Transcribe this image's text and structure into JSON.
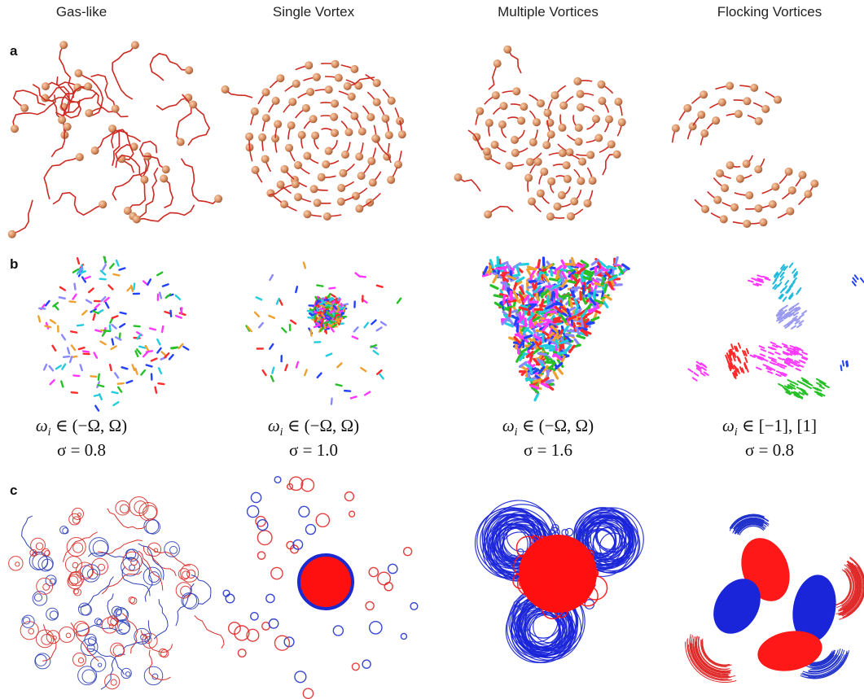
{
  "columns": [
    "Gas-like",
    "Single Vortex",
    "Multiple Vortices",
    "Flocking Vortices"
  ],
  "panels": [
    "a",
    "b",
    "c"
  ],
  "equations": [
    {
      "symbol": "ω",
      "subscript": "i",
      "rest": " ∈ (−Ω, Ω)",
      "sigma": "σ = 0.8"
    },
    {
      "symbol": "ω",
      "subscript": "i",
      "rest": " ∈ (−Ω, Ω)",
      "sigma": "σ = 1.0"
    },
    {
      "symbol": "ω",
      "subscript": "i",
      "rest": " ∈ (−Ω, Ω)",
      "sigma": "σ = 1.6"
    },
    {
      "symbol": "ω",
      "subscript": "i",
      "rest": " ∈ [−1], [1]",
      "sigma": "σ = 0.8"
    }
  ]
}
